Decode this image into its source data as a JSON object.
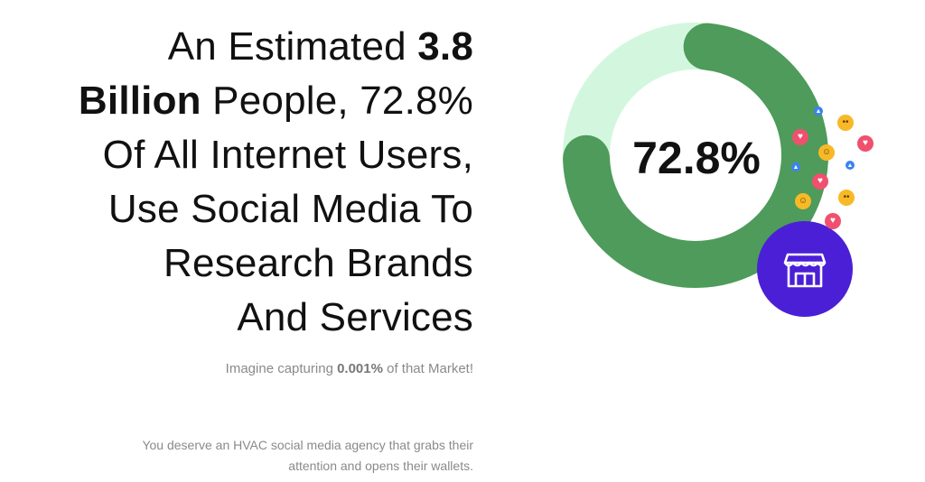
{
  "headline": {
    "line1_prefix": "An Estimated ",
    "line1_bold": "3.8",
    "line2_bold": "Billion",
    "line2_rest": " People, 72.8%",
    "line3": "Of All Internet Users,",
    "line4": "Use Social Media To",
    "line5": "Research Brands",
    "line6": "And Services"
  },
  "tagline": {
    "prefix": "Imagine capturing ",
    "bold": "0.001%",
    "suffix": " of that Market!"
  },
  "body_copy": {
    "line1": "You deserve an HVAC social media agency that grabs their",
    "line2": "attention and opens their wallets."
  },
  "donut": {
    "label": "72.8%",
    "percent": 72.8,
    "colors": {
      "filled": "#4e9b5b",
      "track": "#d2f7de"
    }
  },
  "store_badge": {
    "icon": "storefront-icon",
    "color": "#4b1fd6"
  },
  "reactions": [
    {
      "type": "heart",
      "icon": "heart-icon",
      "color": "#f0506e"
    },
    {
      "type": "wow",
      "icon": "wow-emoji-icon",
      "color": "#f7b928"
    },
    {
      "type": "laugh",
      "icon": "laugh-emoji-icon",
      "color": "#f7b928"
    },
    {
      "type": "heart",
      "icon": "heart-icon",
      "color": "#f0506e"
    },
    {
      "type": "like",
      "icon": "thumbs-up-icon",
      "color": "#3b82f6"
    },
    {
      "type": "heart",
      "icon": "heart-icon",
      "color": "#f0506e"
    },
    {
      "type": "like",
      "icon": "thumbs-up-icon",
      "color": "#3b82f6"
    },
    {
      "type": "laugh",
      "icon": "laugh-emoji-icon",
      "color": "#f7b928"
    },
    {
      "type": "wow",
      "icon": "wow-emoji-icon",
      "color": "#f7b928"
    },
    {
      "type": "heart",
      "icon": "heart-icon",
      "color": "#f0506e"
    },
    {
      "type": "like",
      "icon": "thumbs-up-icon",
      "color": "#3b82f6"
    }
  ]
}
